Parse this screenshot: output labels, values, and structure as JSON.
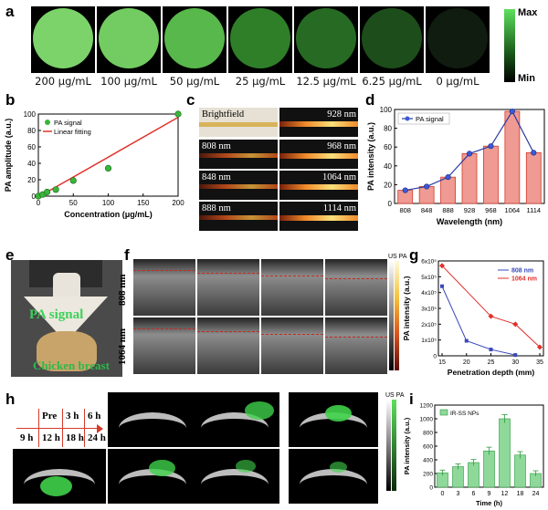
{
  "panel_labels": {
    "a": "a",
    "b": "b",
    "c": "c",
    "d": "d",
    "e": "e",
    "f": "f",
    "g": "g",
    "h": "h",
    "i": "i"
  },
  "panel_a": {
    "concentrations": [
      "200 μg/mL",
      "100 μg/mL",
      "50 μg/mL",
      "25 μg/mL",
      "12.5 μg/mL",
      "6.25 μg/mL",
      "0 μg/mL"
    ],
    "colors": [
      "#7bd36a",
      "#72cc62",
      "#58b84b",
      "#2f7f29",
      "#276a23",
      "#1d4d1a",
      "#0f1c0f"
    ],
    "colorbar_max": "Max",
    "colorbar_min": "Min"
  },
  "panel_c": {
    "left_labels": [
      "Brightfield",
      "808 nm",
      "848 nm",
      "888 nm"
    ],
    "right_labels": [
      "928 nm",
      "968 nm",
      "1064 nm",
      "1114 nm"
    ]
  },
  "panel_e": {
    "pa_text": "PA signal",
    "chicken_text": "Chicken breast"
  },
  "panel_f": {
    "row_labels": [
      "808 nm",
      "1064 nm"
    ],
    "colorbar_label": "US PA"
  },
  "panel_h": {
    "timeline_row1": [
      "Pre",
      "3 h",
      "6 h"
    ],
    "timeline_row2": [
      "9 h",
      "12 h",
      "18 h",
      "24 h"
    ],
    "colorbar_label": "US PA"
  },
  "chart_data": [
    {
      "id": "b",
      "type": "scatter",
      "xlabel": "Concentration (μg/mL)",
      "ylabel": "PA amplitude (a.u.)",
      "xlim": [
        0,
        200
      ],
      "ylim": [
        0,
        100
      ],
      "xticks": [
        0,
        50,
        100,
        150,
        200
      ],
      "yticks": [
        0,
        20,
        40,
        60,
        80,
        100
      ],
      "series": [
        {
          "name": "PA signal",
          "x": [
            0,
            6.25,
            12.5,
            25,
            50,
            100,
            200
          ],
          "y": [
            0,
            2,
            5,
            8,
            19,
            34,
            100
          ]
        },
        {
          "name": "Linear fitting",
          "x": [
            0,
            200
          ],
          "y": [
            -1,
            96
          ]
        }
      ],
      "legend": "top-left"
    },
    {
      "id": "d",
      "type": "bar",
      "xlabel": "Wavelength (nm)",
      "ylabel": "PA intensity (a.u.)",
      "categories": [
        "808",
        "848",
        "888",
        "928",
        "968",
        "1064",
        "1114"
      ],
      "ylim": [
        0,
        100
      ],
      "yticks": [
        0,
        20,
        40,
        60,
        80,
        100
      ],
      "series": [
        {
          "name": "PA signal",
          "values": [
            14,
            18,
            28,
            53,
            61,
            98,
            54
          ]
        }
      ],
      "legend": "top-left"
    },
    {
      "id": "g",
      "type": "line",
      "xlabel": "Penetration depth (mm)",
      "ylabel": "PA intensity (a.u.)",
      "xlim": [
        15,
        35
      ],
      "ylim": [
        0,
        600000.0
      ],
      "xticks": [
        15,
        20,
        25,
        30,
        35
      ],
      "ytick_labels": [
        "0",
        "1x10⁵",
        "2x10⁵",
        "3x10⁵",
        "4x10⁵",
        "5x10⁵",
        "6x10⁵"
      ],
      "series": [
        {
          "name": "808 nm",
          "color": "#3a4ab8",
          "x": [
            15,
            20,
            25,
            30
          ],
          "y": [
            440000,
            95000,
            40000,
            5000
          ]
        },
        {
          "name": "1064 nm",
          "color": "#e0302b",
          "x": [
            15,
            25,
            30,
            35
          ],
          "y": [
            570000,
            250000,
            200000,
            55000
          ]
        }
      ],
      "legend": "top-right"
    },
    {
      "id": "i",
      "type": "bar",
      "xlabel": "Time (h)",
      "ylabel": "PA intensity (a.u.)",
      "categories": [
        "0",
        "3",
        "6",
        "9",
        "12",
        "18",
        "24"
      ],
      "ylim": [
        0,
        1200
      ],
      "yticks": [
        0,
        200,
        400,
        600,
        800,
        1000,
        1200
      ],
      "series": [
        {
          "name": "IR-SS NPs",
          "values": [
            210,
            300,
            360,
            530,
            1000,
            470,
            200
          ],
          "errors": [
            40,
            40,
            45,
            55,
            60,
            50,
            40
          ]
        }
      ],
      "legend": "top-left"
    }
  ]
}
